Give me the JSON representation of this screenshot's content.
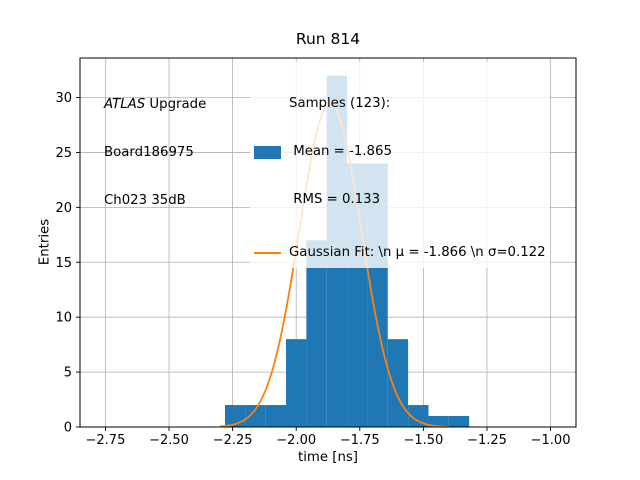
{
  "chart_data": {
    "type": "bar",
    "subtype": "histogram-with-gaussian-fit",
    "title": "Run 814",
    "xlabel": "time [ns]",
    "ylabel": "Entries",
    "xlim": [
      -2.85,
      -0.9
    ],
    "ylim": [
      0,
      33.6
    ],
    "grid": true,
    "grid_color": "#b0b0b0",
    "bar_color": "#1f77b4",
    "line_color": "#ff7f0e",
    "xticks": [
      -2.75,
      -2.5,
      -2.25,
      -2.0,
      -1.75,
      -1.5,
      -1.25,
      -1.0
    ],
    "xtick_labels": [
      "−2.75",
      "−2.50",
      "−2.25",
      "−2.00",
      "−1.75",
      "−1.50",
      "−1.25",
      "−1.00"
    ],
    "yticks": [
      0,
      5,
      10,
      15,
      20,
      25,
      30
    ],
    "ytick_labels": [
      "0",
      "5",
      "10",
      "15",
      "20",
      "25",
      "30"
    ],
    "bin_edges": [
      -2.28,
      -2.2,
      -2.12,
      -2.04,
      -1.96,
      -1.88,
      -1.8,
      -1.72,
      -1.64,
      -1.56,
      -1.48,
      -1.4,
      -1.32
    ],
    "counts": [
      2,
      2,
      2,
      8,
      17,
      32,
      24,
      24,
      8,
      2,
      1,
      1
    ],
    "gaussian": {
      "mu": -1.866,
      "sigma": 0.122,
      "amplitude": 29.5,
      "x_min": -2.3,
      "x_max": -1.4
    },
    "stats": {
      "samples": 123,
      "mean": -1.865,
      "rms": 0.133,
      "fit_mu": -1.866,
      "fit_sigma": 0.122
    },
    "annotation": {
      "line1_italic": "ATLAS",
      "line1_rest": " Upgrade",
      "line2": "Board186975",
      "line3": "Ch023 35dB"
    },
    "legend": {
      "samples_line1": "Samples (123):",
      "samples_line2": " Mean = -1.865",
      "samples_line3": " RMS = 0.133",
      "gaussian_label": "Gaussian Fit: \\n μ = -1.866 \\n σ=0.122"
    }
  }
}
